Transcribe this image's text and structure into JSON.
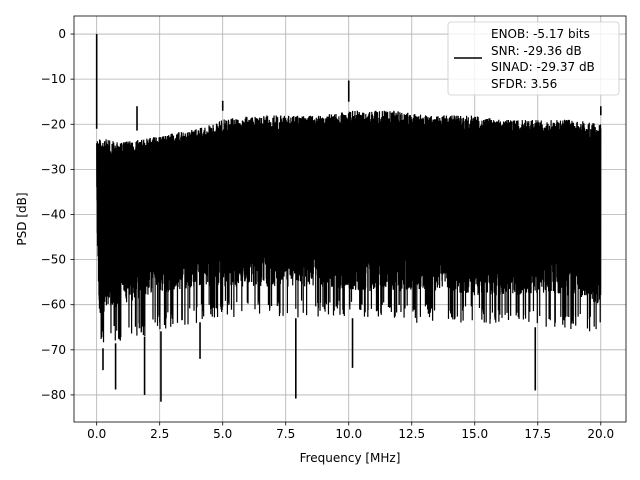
{
  "chart_data": {
    "type": "line",
    "title": "",
    "xlabel": "Frequency [MHz]",
    "ylabel": "PSD [dB]",
    "xlim": [
      -0.9,
      21.0
    ],
    "ylim": [
      -86.0,
      4.0
    ],
    "grid": true,
    "x_ticks": [
      0.0,
      2.5,
      5.0,
      7.5,
      10.0,
      12.5,
      15.0,
      17.5,
      20.0
    ],
    "x_tick_labels": [
      "0.0",
      "2.5",
      "5.0",
      "7.5",
      "10.0",
      "12.5",
      "15.0",
      "17.5",
      "20.0"
    ],
    "y_ticks": [
      0,
      -10,
      -20,
      -30,
      -40,
      -50,
      -60,
      -70,
      -80
    ],
    "y_tick_labels": [
      "0",
      "−10",
      "−20",
      "−30",
      "−40",
      "−50",
      "−60",
      "−70",
      "−80"
    ],
    "legend": {
      "position": "top-right",
      "entries": [
        "ENOB: -5.17 bits",
        "SNR: -29.36 dB",
        "SINAD: -29.37 dB",
        "SFDR: 3.56"
      ]
    },
    "series": [
      {
        "color": "#000000",
        "noise_envelope": {
          "x": [
            0.0,
            0.1,
            1.0,
            2.0,
            3.0,
            4.0,
            5.0,
            6.0,
            7.0,
            8.0,
            9.0,
            10.0,
            11.0,
            12.0,
            13.0,
            14.0,
            15.0,
            16.0,
            17.0,
            18.0,
            19.0,
            20.0
          ],
          "upper": [
            -23,
            -23,
            -24,
            -23,
            -22,
            -21,
            -19,
            -18,
            -18,
            -18,
            -18,
            -17,
            -17,
            -17,
            -18,
            -18,
            -18,
            -19,
            -19,
            -19,
            -19,
            -20
          ],
          "lower": [
            -43,
            -62,
            -60,
            -58,
            -57,
            -56,
            -56,
            -56,
            -56,
            -56,
            -56,
            -57,
            -57,
            -57,
            -57,
            -57,
            -58,
            -58,
            -58,
            -58,
            -58,
            -60
          ],
          "deep_lower": [
            -45,
            -70,
            -68,
            -67,
            -65,
            -64,
            -63,
            -63,
            -63,
            -63,
            -63,
            -63,
            -63,
            -64,
            -64,
            -64,
            -64,
            -65,
            -65,
            -65,
            -66,
            -66
          ]
        },
        "spikes": [
          {
            "x": 0.0,
            "y": 0.0
          },
          {
            "x": 1.6,
            "y": -16.0
          },
          {
            "x": 5.0,
            "y": -14.8
          },
          {
            "x": 10.0,
            "y": -10.3
          },
          {
            "x": 20.0,
            "y": -16.0
          }
        ],
        "dips": [
          {
            "x": 0.25,
            "y": -74.5
          },
          {
            "x": 0.75,
            "y": -78.8
          },
          {
            "x": 1.9,
            "y": -80.0
          },
          {
            "x": 2.55,
            "y": -81.5
          },
          {
            "x": 4.1,
            "y": -72.0
          },
          {
            "x": 7.9,
            "y": -80.8
          },
          {
            "x": 10.15,
            "y": -74.0
          },
          {
            "x": 17.4,
            "y": -79.0
          }
        ]
      }
    ]
  }
}
